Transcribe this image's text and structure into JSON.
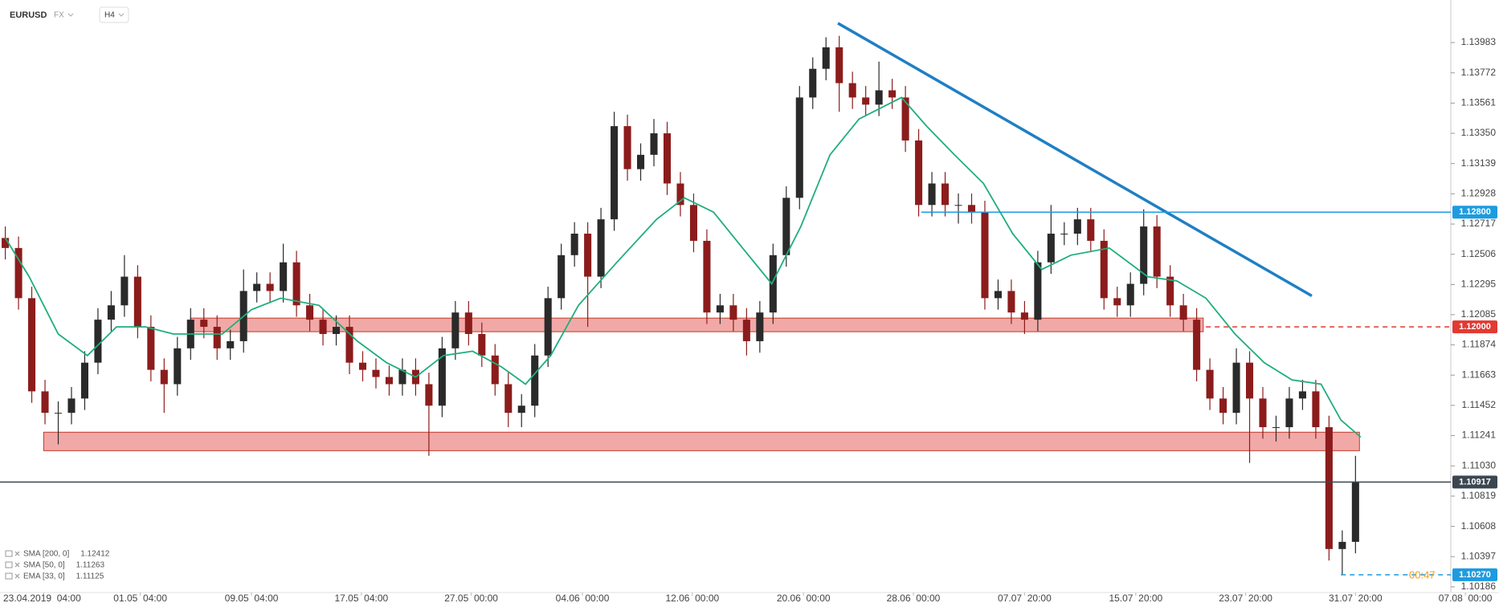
{
  "chart_data": {
    "type": "candlestick",
    "symbol": "EURUSD",
    "market": "FX",
    "timeframe": "H4",
    "up_color": "#2a2a2a",
    "down_color": "#8c1c1c",
    "xlim": [
      -0.4,
      109.2
    ],
    "ylim": [
      1.1018,
      1.1428
    ],
    "yticks": [
      1.13983,
      1.13772,
      1.13561,
      {
        "value": 1.1335,
        "label": "1.13350"
      },
      1.13139,
      1.12928,
      1.12717,
      1.12506,
      1.12295,
      1.12085,
      1.11874,
      1.11663,
      1.11452,
      1.11241,
      {
        "value": 1.1103,
        "label": "1.11030"
      },
      1.10819,
      1.10608,
      1.10397,
      1.10186
    ],
    "xticks": [
      {
        "value": 2.9,
        "label": "23.04.2019  04:00"
      },
      {
        "value": 10.2,
        "label": "01.05  04:00"
      },
      {
        "value": 18.6,
        "label": "09.05  04:00"
      },
      {
        "value": 26.9,
        "label": "17.05  04:00"
      },
      {
        "value": 35.2,
        "label": "27.05  00:00"
      },
      {
        "value": 43.6,
        "label": "04.06  00:00"
      },
      {
        "value": 51.9,
        "label": "12.06  00:00"
      },
      {
        "value": 60.3,
        "label": "20.06  00:00"
      },
      {
        "value": 68.6,
        "label": "28.06  00:00"
      },
      {
        "value": 77.0,
        "label": "07.07  20:00"
      },
      {
        "value": 85.4,
        "label": "15.07  20:00"
      },
      {
        "value": 93.7,
        "label": "23.07  20:00"
      },
      {
        "value": 102.0,
        "label": "31.07  20:00"
      },
      {
        "value": 110.3,
        "label": "07.08  00:00"
      }
    ],
    "x": [
      0,
      1,
      2,
      3,
      4,
      5,
      6,
      7,
      8,
      9,
      10,
      11,
      12,
      13,
      14,
      15,
      16,
      17,
      18,
      19,
      20,
      21,
      22,
      23,
      24,
      25,
      26,
      27,
      28,
      29,
      30,
      31,
      32,
      33,
      34,
      35,
      36,
      37,
      38,
      39,
      40,
      41,
      42,
      43,
      44,
      45,
      46,
      47,
      48,
      49,
      50,
      51,
      52,
      53,
      54,
      55,
      56,
      57,
      58,
      59,
      60,
      61,
      62,
      63,
      64,
      65,
      66,
      67,
      68,
      69,
      70,
      71,
      72,
      73,
      74,
      75,
      76,
      77,
      78,
      79,
      80,
      81,
      82,
      83,
      84,
      85,
      86,
      87,
      88,
      89,
      90,
      91,
      92,
      93,
      94,
      95,
      96,
      97,
      98,
      99,
      100,
      101,
      102
    ],
    "open": [
      1.1262,
      1.1255,
      1.122,
      1.1155,
      1.114,
      1.114,
      1.115,
      1.1175,
      1.1205,
      1.1215,
      1.1235,
      1.12,
      1.117,
      1.116,
      1.1185,
      1.1205,
      1.12,
      1.1185,
      1.119,
      1.1225,
      1.123,
      1.1225,
      1.1245,
      1.1215,
      1.1205,
      1.1195,
      1.12,
      1.1175,
      1.117,
      1.1165,
      1.116,
      1.117,
      1.116,
      1.1145,
      1.1185,
      1.121,
      1.1195,
      1.118,
      1.116,
      1.114,
      1.1145,
      1.118,
      1.122,
      1.125,
      1.1265,
      1.1235,
      1.1275,
      1.134,
      1.131,
      1.132,
      1.1335,
      1.13,
      1.1285,
      1.126,
      1.121,
      1.1215,
      1.1205,
      1.119,
      1.121,
      1.125,
      1.129,
      1.136,
      1.138,
      1.1395,
      1.137,
      1.136,
      1.1355,
      1.1365,
      1.136,
      1.133,
      1.1285,
      1.13,
      1.1285,
      1.1285,
      1.128,
      1.122,
      1.1225,
      1.121,
      1.1205,
      1.1245,
      1.1265,
      1.1265,
      1.1275,
      1.126,
      1.122,
      1.1215,
      1.123,
      1.127,
      1.1235,
      1.1215,
      1.1205,
      1.117,
      1.115,
      1.114,
      1.1175,
      1.115,
      1.113,
      1.113,
      1.115,
      1.1155,
      1.113,
      1.1045,
      1.105
    ],
    "high": [
      1.127,
      1.1263,
      1.1228,
      1.1163,
      1.1148,
      1.1158,
      1.1183,
      1.1213,
      1.1225,
      1.125,
      1.1243,
      1.1208,
      1.1178,
      1.1193,
      1.1213,
      1.1213,
      1.1208,
      1.1198,
      1.124,
      1.1238,
      1.1238,
      1.1258,
      1.1253,
      1.1223,
      1.1213,
      1.1208,
      1.1208,
      1.1183,
      1.1178,
      1.1173,
      1.1178,
      1.1178,
      1.1168,
      1.1193,
      1.1218,
      1.1218,
      1.1203,
      1.1188,
      1.1168,
      1.1153,
      1.1188,
      1.1228,
      1.1258,
      1.1273,
      1.1273,
      1.1283,
      1.135,
      1.1348,
      1.1328,
      1.1345,
      1.1343,
      1.1308,
      1.1293,
      1.1268,
      1.1223,
      1.1223,
      1.1213,
      1.1218,
      1.1258,
      1.1298,
      1.1368,
      1.1388,
      1.1402,
      1.1403,
      1.1378,
      1.1368,
      1.1385,
      1.1373,
      1.1368,
      1.1338,
      1.1308,
      1.1308,
      1.1293,
      1.1293,
      1.1288,
      1.1233,
      1.1233,
      1.1218,
      1.1253,
      1.1285,
      1.1273,
      1.1283,
      1.1283,
      1.1268,
      1.1228,
      1.1238,
      1.1282,
      1.1278,
      1.1243,
      1.1223,
      1.1213,
      1.1178,
      1.1158,
      1.1185,
      1.1183,
      1.1158,
      1.1138,
      1.1158,
      1.1163,
      1.1163,
      1.1138,
      1.1058,
      1.111
    ],
    "low": [
      1.1247,
      1.1212,
      1.1147,
      1.1132,
      1.1118,
      1.1132,
      1.1142,
      1.1167,
      1.1197,
      1.1207,
      1.1192,
      1.1162,
      1.114,
      1.1152,
      1.1177,
      1.1192,
      1.1177,
      1.1177,
      1.1182,
      1.1217,
      1.1217,
      1.1217,
      1.1207,
      1.1197,
      1.1187,
      1.1187,
      1.1167,
      1.1162,
      1.1157,
      1.1152,
      1.1152,
      1.1152,
      1.111,
      1.1137,
      1.1177,
      1.1187,
      1.1172,
      1.1152,
      1.113,
      1.113,
      1.1137,
      1.1172,
      1.1212,
      1.1242,
      1.12,
      1.1227,
      1.1267,
      1.1302,
      1.1302,
      1.1312,
      1.1292,
      1.1277,
      1.1252,
      1.1202,
      1.1202,
      1.1197,
      1.118,
      1.1182,
      1.1202,
      1.1242,
      1.1282,
      1.1352,
      1.1372,
      1.135,
      1.1352,
      1.1347,
      1.1347,
      1.1352,
      1.1322,
      1.1277,
      1.1277,
      1.1277,
      1.1272,
      1.1272,
      1.1212,
      1.1212,
      1.1202,
      1.1195,
      1.1197,
      1.1237,
      1.1257,
      1.1257,
      1.1252,
      1.1212,
      1.1207,
      1.1207,
      1.1222,
      1.1227,
      1.1207,
      1.1197,
      1.1162,
      1.1142,
      1.1132,
      1.1132,
      1.1105,
      1.1122,
      1.112,
      1.1122,
      1.1142,
      1.1122,
      1.1037,
      1.1027,
      1.1042
    ],
    "close": [
      1.1255,
      1.122,
      1.1155,
      1.114,
      1.114,
      1.115,
      1.1175,
      1.1205,
      1.1215,
      1.1235,
      1.12,
      1.117,
      1.116,
      1.1185,
      1.1205,
      1.12,
      1.1185,
      1.119,
      1.1225,
      1.123,
      1.1225,
      1.1245,
      1.1215,
      1.1205,
      1.1195,
      1.12,
      1.1175,
      1.117,
      1.1165,
      1.116,
      1.117,
      1.116,
      1.1145,
      1.1185,
      1.121,
      1.1195,
      1.118,
      1.116,
      1.114,
      1.1145,
      1.118,
      1.122,
      1.125,
      1.1265,
      1.1235,
      1.1275,
      1.134,
      1.131,
      1.132,
      1.1335,
      1.13,
      1.1285,
      1.126,
      1.121,
      1.1215,
      1.1205,
      1.119,
      1.121,
      1.125,
      1.129,
      1.136,
      1.138,
      1.1395,
      1.137,
      1.136,
      1.1355,
      1.1365,
      1.136,
      1.133,
      1.1285,
      1.13,
      1.1285,
      1.1285,
      1.128,
      1.122,
      1.1225,
      1.121,
      1.1205,
      1.1245,
      1.1265,
      1.1265,
      1.1275,
      1.126,
      1.122,
      1.1215,
      1.123,
      1.127,
      1.1235,
      1.1215,
      1.1205,
      1.117,
      1.115,
      1.114,
      1.1175,
      1.115,
      1.113,
      1.113,
      1.115,
      1.1155,
      1.113,
      1.1045,
      1.105,
      1.1092
    ],
    "indicators": [
      {
        "label": "SMA [200, 0]",
        "value": 1.12412
      },
      {
        "label": "SMA [50, 0]",
        "value": 1.11263
      },
      {
        "label": "EMA [33, 0]",
        "value": 1.11125,
        "color": "#1fae7a",
        "x": [
          0,
          1.8,
          4.0,
          6.2,
          8.4,
          10.6,
          12.7,
          16.4,
          18.6,
          20.8,
          23.7,
          26.6,
          28.8,
          31.0,
          33.1,
          35.3,
          37.5,
          39.3,
          41.2,
          43.3,
          46.2,
          49.2,
          51.3,
          53.5,
          55.7,
          57.9,
          60.1,
          62.3,
          64.5,
          67.7,
          69.6,
          71.7,
          73.9,
          76.1,
          78.3,
          80.5,
          83.4,
          86.3,
          88.5,
          90.7,
          92.9,
          95.1,
          97.2,
          99.4,
          100.9,
          102.4
        ],
        "values": [
          1.1262,
          1.1235,
          1.1195,
          1.118,
          1.12,
          1.12,
          1.1195,
          1.1195,
          1.1212,
          1.122,
          1.1215,
          1.119,
          1.1175,
          1.1165,
          1.118,
          1.1183,
          1.1172,
          1.116,
          1.118,
          1.1215,
          1.1245,
          1.1275,
          1.129,
          1.128,
          1.1255,
          1.123,
          1.127,
          1.132,
          1.1345,
          1.136,
          1.134,
          1.132,
          1.13,
          1.1265,
          1.124,
          1.125,
          1.1255,
          1.1235,
          1.1232,
          1.122,
          1.1195,
          1.1175,
          1.1163,
          1.116,
          1.1135,
          1.1123
        ]
      }
    ],
    "zones": [
      {
        "x": [
          14.0,
          90.5
        ],
        "y": [
          1.11966,
          1.12061
        ]
      },
      {
        "x": [
          2.9,
          102.3
        ],
        "y": [
          1.11136,
          1.11265
        ]
      }
    ],
    "zone_color": "#e8706c",
    "trendline": {
      "x": [
        62.9,
        98.7
      ],
      "y": [
        1.14118,
        1.12216
      ],
      "color": "#1f7fc4"
    },
    "levels": [
      {
        "value": 1.128,
        "label": "1.12800",
        "color": "#1e9be0",
        "from": 69.2,
        "style": "solid"
      },
      {
        "value": 1.12,
        "label": "1.12000",
        "color": "#e03a32",
        "from": 90.7,
        "style": "dashed"
      },
      {
        "value": 1.10917,
        "label": "1.10917",
        "color": "#3b4650",
        "style": "solid"
      },
      {
        "value": 1.1027,
        "label": "1.10270",
        "color": "#1e9be0",
        "from": 100.9,
        "style": "dashed"
      }
    ],
    "countdown": "00:47"
  }
}
